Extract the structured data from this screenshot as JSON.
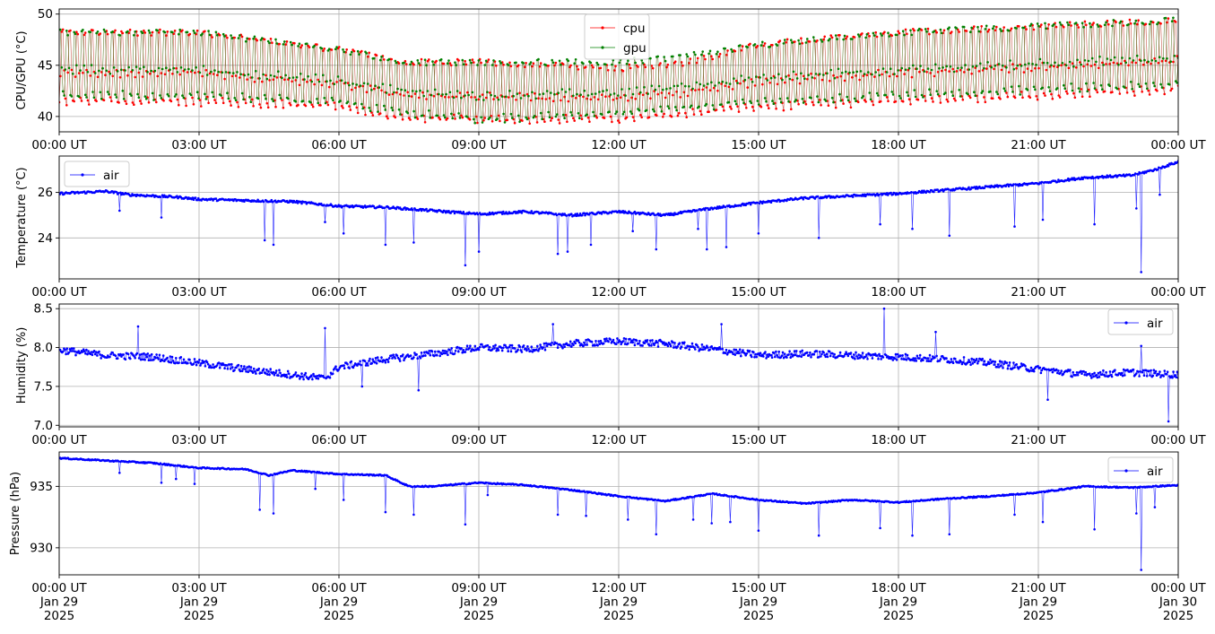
{
  "chart_data": [
    {
      "type": "line",
      "ylabel": "CPU/GPU (°C)",
      "ylim": [
        38.5,
        50.5
      ],
      "yticks": [
        40,
        45,
        50
      ],
      "x_start": "2025-01-29 00:00 UT",
      "x_end": "2025-01-30 00:00 UT",
      "xtick_labels": [
        "00:00 UT",
        "03:00 UT",
        "06:00 UT",
        "09:00 UT",
        "12:00 UT",
        "15:00 UT",
        "18:00 UT",
        "21:00 UT",
        "00:00 UT"
      ],
      "legend_position": "top-center",
      "grid": true,
      "series": [
        {
          "name": "cpu",
          "color": "#ff0000",
          "style": "oscillating",
          "hours": [
            0,
            3,
            6,
            7.5,
            9,
            12,
            13.5,
            15,
            18,
            21,
            24
          ],
          "low": [
            41.3,
            41.3,
            40.8,
            39.6,
            39.6,
            39.6,
            40.2,
            40.8,
            41.3,
            41.9,
            42.5
          ],
          "high": [
            48.2,
            48.2,
            46.5,
            45.3,
            45.3,
            44.7,
            45.3,
            47.0,
            48.2,
            48.8,
            49.4
          ]
        },
        {
          "name": "gpu",
          "color": "#008000",
          "style": "oscillating",
          "hours": [
            0,
            3,
            6,
            7.5,
            9,
            12,
            13.5,
            15,
            18,
            21,
            24
          ],
          "low": [
            41.9,
            41.9,
            41.3,
            40.2,
            39.6,
            40.2,
            40.8,
            41.3,
            41.9,
            42.5,
            43.0
          ],
          "high": [
            48.2,
            48.2,
            46.5,
            45.3,
            45.3,
            45.3,
            45.9,
            47.0,
            48.2,
            48.8,
            49.4
          ]
        }
      ]
    },
    {
      "type": "line",
      "ylabel": "Temperature (°C)",
      "ylim": [
        22.2,
        27.6
      ],
      "yticks": [
        24,
        26
      ],
      "xtick_labels": [
        "00:00 UT",
        "03:00 UT",
        "06:00 UT",
        "09:00 UT",
        "12:00 UT",
        "15:00 UT",
        "18:00 UT",
        "21:00 UT",
        "00:00 UT"
      ],
      "legend_position": "top-left",
      "grid": true,
      "series": [
        {
          "name": "air",
          "color": "#0000ff",
          "style": "noisy",
          "noise": 0.05,
          "hours": [
            0,
            1,
            1.5,
            2.5,
            3,
            4,
            5,
            6,
            7,
            8,
            9,
            10,
            11,
            12,
            13,
            14,
            15,
            16,
            17,
            18,
            19,
            20,
            21,
            22,
            23,
            23.5,
            24
          ],
          "values": [
            25.95,
            26.05,
            25.9,
            25.8,
            25.7,
            25.65,
            25.6,
            25.4,
            25.35,
            25.2,
            25.05,
            25.15,
            25.0,
            25.15,
            25.0,
            25.3,
            25.55,
            25.75,
            25.85,
            25.95,
            26.1,
            26.25,
            26.4,
            26.65,
            26.75,
            27.0,
            27.35
          ],
          "spikes": [
            [
              1.3,
              25.2
            ],
            [
              2.2,
              24.9
            ],
            [
              4.4,
              23.9
            ],
            [
              4.6,
              23.7
            ],
            [
              5.7,
              24.7
            ],
            [
              6.1,
              24.2
            ],
            [
              7.0,
              23.7
            ],
            [
              7.6,
              23.8
            ],
            [
              8.7,
              22.8
            ],
            [
              9.0,
              23.4
            ],
            [
              10.7,
              23.3
            ],
            [
              10.9,
              23.4
            ],
            [
              11.4,
              23.7
            ],
            [
              12.3,
              24.3
            ],
            [
              12.8,
              23.5
            ],
            [
              13.7,
              24.4
            ],
            [
              13.9,
              23.5
            ],
            [
              14.3,
              23.6
            ],
            [
              15.0,
              24.2
            ],
            [
              16.3,
              24.0
            ],
            [
              17.6,
              24.6
            ],
            [
              18.3,
              24.4
            ],
            [
              19.1,
              24.1
            ],
            [
              20.5,
              24.5
            ],
            [
              21.1,
              24.8
            ],
            [
              22.2,
              24.6
            ],
            [
              23.1,
              25.3
            ],
            [
              23.2,
              22.5
            ],
            [
              23.6,
              25.9
            ]
          ]
        }
      ]
    },
    {
      "type": "line",
      "ylabel": "Humidity (%)",
      "ylim": [
        6.98,
        8.56
      ],
      "yticks": [
        7.0,
        7.5,
        8.0,
        8.5
      ],
      "xtick_labels": [
        "00:00 UT",
        "03:00 UT",
        "06:00 UT",
        "09:00 UT",
        "12:00 UT",
        "15:00 UT",
        "18:00 UT",
        "21:00 UT",
        "00:00 UT"
      ],
      "legend_position": "top-right",
      "grid": true,
      "series": [
        {
          "name": "air",
          "color": "#0000ff",
          "style": "noisy",
          "noise": 0.045,
          "hours": [
            0,
            1,
            2,
            3,
            4,
            5,
            5.7,
            6,
            7,
            8,
            9,
            10,
            11,
            12,
            13,
            14,
            15,
            16,
            17,
            18,
            19,
            20,
            21,
            22,
            23,
            24
          ],
          "values": [
            7.97,
            7.9,
            7.88,
            7.8,
            7.72,
            7.65,
            7.6,
            7.75,
            7.85,
            7.92,
            8.0,
            7.98,
            8.05,
            8.08,
            8.05,
            7.98,
            7.9,
            7.92,
            7.9,
            7.88,
            7.85,
            7.8,
            7.72,
            7.65,
            7.68,
            7.65
          ],
          "spikes": [
            [
              1.7,
              8.27
            ],
            [
              5.7,
              8.25
            ],
            [
              6.5,
              7.5
            ],
            [
              7.7,
              7.45
            ],
            [
              10.6,
              8.3
            ],
            [
              14.2,
              8.3
            ],
            [
              17.7,
              8.5
            ],
            [
              18.8,
              8.2
            ],
            [
              21.2,
              7.33
            ],
            [
              23.2,
              8.02
            ],
            [
              23.8,
              7.05
            ]
          ]
        }
      ]
    },
    {
      "type": "line",
      "ylabel": "Pressure (hPa)",
      "ylim": [
        927.8,
        937.8
      ],
      "yticks": [
        930,
        935
      ],
      "x_start": "2025-01-29 00:00 UT",
      "x_end": "2025-01-30 00:00 UT",
      "xtick_labels": [
        "00:00 UT\nJan 29\n2025",
        "03:00 UT\nJan 29\n2025",
        "06:00 UT\nJan 29\n2025",
        "09:00 UT\nJan 29\n2025",
        "12:00 UT\nJan 29\n2025",
        "15:00 UT\nJan 29\n2025",
        "18:00 UT\nJan 29\n2025",
        "21:00 UT\nJan 29\n2025",
        "00:00 UT\nJan 30\n2025"
      ],
      "legend_position": "top-right",
      "grid": true,
      "series": [
        {
          "name": "air",
          "color": "#0000ff",
          "style": "noisy",
          "noise": 0.05,
          "hours": [
            0,
            1,
            2,
            3,
            4,
            4.5,
            5,
            6,
            7,
            7.5,
            8,
            9,
            10,
            11,
            12,
            13,
            14,
            15,
            16,
            17,
            18,
            19,
            20,
            21,
            22,
            23,
            24
          ],
          "values": [
            937.3,
            937.1,
            936.9,
            936.5,
            936.4,
            935.9,
            936.3,
            936.0,
            935.9,
            935.0,
            935.0,
            935.3,
            935.1,
            934.7,
            934.2,
            933.8,
            934.4,
            933.9,
            933.6,
            933.9,
            933.7,
            934.0,
            934.2,
            934.5,
            935.0,
            934.9,
            935.1
          ],
          "spikes": [
            [
              1.3,
              936.1
            ],
            [
              2.2,
              935.3
            ],
            [
              2.5,
              935.6
            ],
            [
              2.9,
              935.2
            ],
            [
              4.3,
              933.1
            ],
            [
              4.6,
              932.8
            ],
            [
              5.5,
              934.8
            ],
            [
              6.1,
              933.9
            ],
            [
              7.0,
              932.9
            ],
            [
              7.6,
              932.7
            ],
            [
              8.7,
              931.9
            ],
            [
              9.2,
              934.3
            ],
            [
              10.7,
              932.7
            ],
            [
              11.3,
              932.6
            ],
            [
              12.2,
              932.3
            ],
            [
              12.8,
              931.1
            ],
            [
              13.6,
              932.3
            ],
            [
              14.0,
              932.0
            ],
            [
              14.4,
              932.1
            ],
            [
              15.0,
              931.4
            ],
            [
              16.3,
              931.0
            ],
            [
              17.6,
              931.6
            ],
            [
              18.3,
              931.0
            ],
            [
              19.1,
              931.1
            ],
            [
              20.5,
              932.7
            ],
            [
              21.1,
              932.1
            ],
            [
              22.2,
              931.5
            ],
            [
              23.1,
              932.8
            ],
            [
              23.2,
              928.2
            ],
            [
              23.5,
              933.3
            ]
          ]
        }
      ]
    }
  ]
}
